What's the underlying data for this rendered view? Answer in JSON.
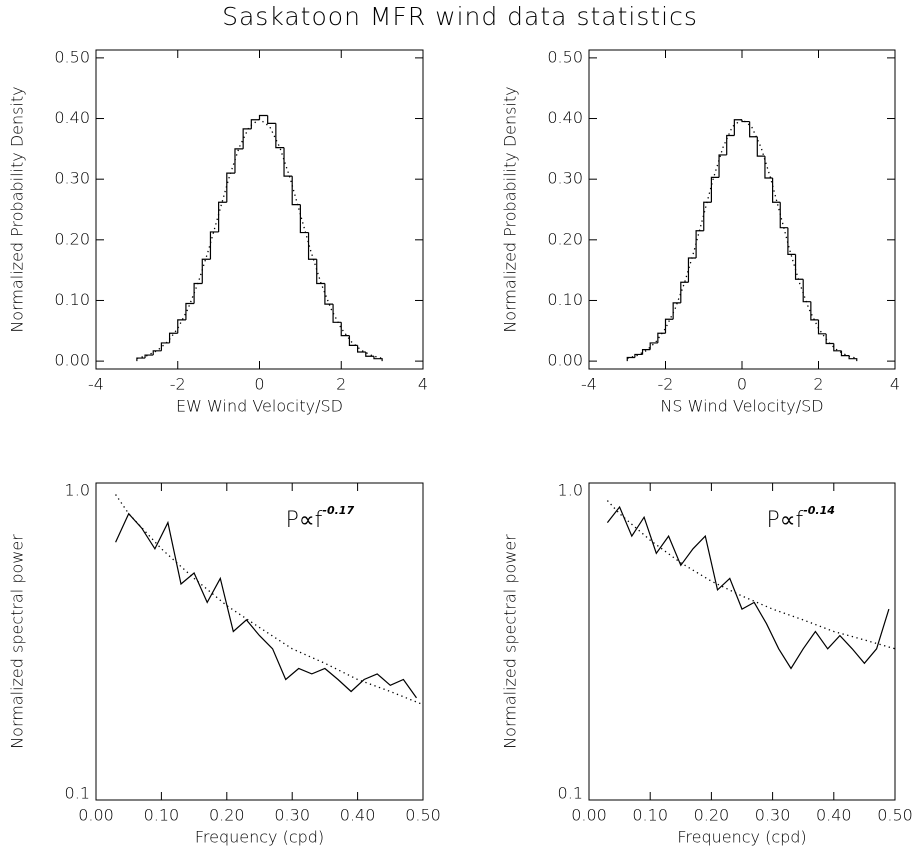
{
  "title": "Saskatoon MFR wind data statistics",
  "chart_data": [
    {
      "type": "histogram",
      "xlabel": "EW Wind Velocity/SD",
      "ylabel": "Normalized Probability Density",
      "color": "#000000",
      "bins": [
        -3,
        -2.8,
        -2.6,
        -2.4,
        -2.2,
        -2,
        -1.8,
        -1.6,
        -1.4,
        -1.2,
        -1,
        -0.8,
        -0.6,
        -0.4,
        -0.2,
        0,
        0.2,
        0.4,
        0.6,
        0.8,
        1,
        1.2,
        1.4,
        1.6,
        1.8,
        2,
        2.2,
        2.4,
        2.6,
        2.8,
        3
      ],
      "values": [
        0.005,
        0.01,
        0.017,
        0.03,
        0.046,
        0.068,
        0.095,
        0.128,
        0.168,
        0.213,
        0.262,
        0.31,
        0.35,
        0.383,
        0.398,
        0.405,
        0.392,
        0.352,
        0.305,
        0.258,
        0.212,
        0.168,
        0.128,
        0.094,
        0.064,
        0.042,
        0.026,
        0.015,
        0.008,
        0.004
      ],
      "curve": {
        "x": [
          -3,
          -2.75,
          -2.5,
          -2.25,
          -2,
          -1.75,
          -1.5,
          -1.25,
          -1,
          -0.75,
          -0.5,
          -0.25,
          0,
          0.25,
          0.5,
          0.75,
          1,
          1.25,
          1.5,
          1.75,
          2,
          2.25,
          2.5,
          2.75,
          3
        ],
        "values": [
          0.0044,
          0.0091,
          0.0175,
          0.0317,
          0.054,
          0.0863,
          0.1295,
          0.1826,
          0.242,
          0.3011,
          0.3521,
          0.3867,
          0.3989,
          0.3867,
          0.3521,
          0.3011,
          0.242,
          0.1826,
          0.1295,
          0.0863,
          0.054,
          0.0317,
          0.0175,
          0.0091,
          0.0044
        ]
      },
      "xlim": [
        -4,
        4
      ],
      "xticks": [
        -4,
        -2,
        0,
        2,
        4
      ],
      "ylim": [
        -0.013,
        0.513
      ],
      "yticks": [
        {
          "value": 0,
          "label": "0.00"
        },
        {
          "value": 0.1,
          "label": "0.10"
        },
        {
          "value": 0.2,
          "label": "0.20"
        },
        {
          "value": 0.3,
          "label": "0.30"
        },
        {
          "value": 0.4,
          "label": "0.40"
        },
        {
          "value": 0.5,
          "label": "0.50"
        }
      ]
    },
    {
      "type": "histogram",
      "xlabel": "NS Wind Velocity/SD",
      "ylabel": "Normalized Probability Density",
      "color": "#000000",
      "bins": [
        -3,
        -2.8,
        -2.6,
        -2.4,
        -2.2,
        -2,
        -1.8,
        -1.6,
        -1.4,
        -1.2,
        -1,
        -0.8,
        -0.6,
        -0.4,
        -0.2,
        0,
        0.2,
        0.4,
        0.6,
        0.8,
        1,
        1.2,
        1.4,
        1.6,
        1.8,
        2,
        2.2,
        2.4,
        2.6,
        2.8,
        3
      ],
      "values": [
        0.006,
        0.011,
        0.019,
        0.03,
        0.046,
        0.069,
        0.096,
        0.13,
        0.17,
        0.215,
        0.262,
        0.303,
        0.34,
        0.372,
        0.398,
        0.395,
        0.37,
        0.338,
        0.302,
        0.262,
        0.22,
        0.176,
        0.135,
        0.098,
        0.068,
        0.045,
        0.029,
        0.017,
        0.009,
        0.004
      ],
      "curve": {
        "x": [
          -3,
          -2.75,
          -2.5,
          -2.25,
          -2,
          -1.75,
          -1.5,
          -1.25,
          -1,
          -0.75,
          -0.5,
          -0.25,
          0,
          0.25,
          0.5,
          0.75,
          1,
          1.25,
          1.5,
          1.75,
          2,
          2.25,
          2.5,
          2.75,
          3
        ],
        "values": [
          0.0044,
          0.0091,
          0.0175,
          0.0317,
          0.054,
          0.0863,
          0.1295,
          0.1826,
          0.242,
          0.3011,
          0.3521,
          0.3867,
          0.3989,
          0.3867,
          0.3521,
          0.3011,
          0.242,
          0.1826,
          0.1295,
          0.0863,
          0.054,
          0.0317,
          0.0175,
          0.0091,
          0.0044
        ]
      },
      "xlim": [
        -4,
        4
      ],
      "xticks": [
        -4,
        -2,
        0,
        2,
        4
      ],
      "ylim": [
        -0.013,
        0.513
      ],
      "yticks": [
        {
          "value": 0,
          "label": "0.00"
        },
        {
          "value": 0.1,
          "label": "0.10"
        },
        {
          "value": 0.2,
          "label": "0.20"
        },
        {
          "value": 0.3,
          "label": "0.30"
        },
        {
          "value": 0.4,
          "label": "0.40"
        },
        {
          "value": 0.5,
          "label": "0.50"
        }
      ]
    },
    {
      "type": "line",
      "xlabel": "Frequency (cpd)",
      "ylabel": "Normalized spectral power",
      "color": "#000000",
      "log_y": true,
      "annotation": "P∝f",
      "annotation_exponent": "-0.17",
      "x": [
        0.03,
        0.05,
        0.07,
        0.09,
        0.11,
        0.13,
        0.15,
        0.17,
        0.19,
        0.21,
        0.23,
        0.25,
        0.27,
        0.29,
        0.31,
        0.33,
        0.35,
        0.37,
        0.39,
        0.41,
        0.43,
        0.45,
        0.47,
        0.49
      ],
      "values": [
        0.65,
        0.8,
        0.72,
        0.62,
        0.75,
        0.48,
        0.52,
        0.42,
        0.5,
        0.34,
        0.37,
        0.33,
        0.3,
        0.24,
        0.26,
        0.25,
        0.26,
        0.24,
        0.22,
        0.24,
        0.25,
        0.23,
        0.24,
        0.21
      ],
      "curve": {
        "x": [
          0.03,
          0.05,
          0.1,
          0.15,
          0.2,
          0.25,
          0.3,
          0.35,
          0.4,
          0.45,
          0.5
        ],
        "values": [
          0.92,
          0.8,
          0.62,
          0.5,
          0.41,
          0.35,
          0.3,
          0.27,
          0.24,
          0.22,
          0.2
        ]
      },
      "xlim": [
        0,
        0.5
      ],
      "xticks": [
        {
          "value": 0,
          "label": "0.00"
        },
        {
          "value": 0.1,
          "label": "0.10"
        },
        {
          "value": 0.2,
          "label": "0.20"
        },
        {
          "value": 0.3,
          "label": "0.30"
        },
        {
          "value": 0.4,
          "label": "0.40"
        },
        {
          "value": 0.5,
          "label": "0.50"
        }
      ],
      "ylim": [
        0.1,
        1
      ],
      "yticks": [
        0.1,
        {
          "value": 1,
          "label": "1.0"
        }
      ]
    },
    {
      "type": "line",
      "xlabel": "Frequency (cpd)",
      "ylabel": "Normalized spectral power",
      "color": "#000000",
      "log_y": true,
      "annotation": "P∝f",
      "annotation_exponent": "-0.14",
      "x": [
        0.03,
        0.05,
        0.07,
        0.09,
        0.11,
        0.13,
        0.15,
        0.17,
        0.19,
        0.21,
        0.23,
        0.25,
        0.27,
        0.29,
        0.31,
        0.33,
        0.35,
        0.37,
        0.39,
        0.41,
        0.43,
        0.45,
        0.47,
        0.49
      ],
      "values": [
        0.75,
        0.84,
        0.68,
        0.78,
        0.6,
        0.68,
        0.55,
        0.62,
        0.68,
        0.46,
        0.5,
        0.4,
        0.42,
        0.36,
        0.3,
        0.26,
        0.3,
        0.34,
        0.3,
        0.33,
        0.3,
        0.27,
        0.3,
        0.4
      ],
      "curve": {
        "x": [
          0.03,
          0.05,
          0.1,
          0.15,
          0.2,
          0.25,
          0.3,
          0.35,
          0.4,
          0.45,
          0.5
        ],
        "values": [
          0.88,
          0.8,
          0.66,
          0.56,
          0.49,
          0.44,
          0.4,
          0.37,
          0.34,
          0.32,
          0.3
        ]
      },
      "xlim": [
        0,
        0.5
      ],
      "xticks": [
        {
          "value": 0,
          "label": "0.00"
        },
        {
          "value": 0.1,
          "label": "0.10"
        },
        {
          "value": 0.2,
          "label": "0.20"
        },
        {
          "value": 0.3,
          "label": "0.30"
        },
        {
          "value": 0.4,
          "label": "0.40"
        },
        {
          "value": 0.5,
          "label": "0.50"
        }
      ],
      "ylim": [
        0.1,
        1
      ],
      "yticks": [
        0.1,
        {
          "value": 1,
          "label": "1.0"
        }
      ]
    }
  ]
}
